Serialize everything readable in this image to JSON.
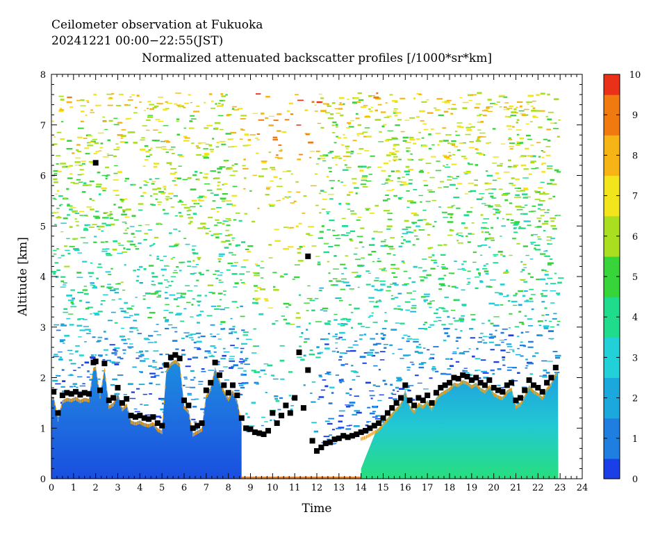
{
  "header": {
    "line1": "Ceilometer observation at Fukuoka",
    "line2": "20241221  00:00−22:55(JST)",
    "line3": "Normalized attenuated backscatter profiles [/1000*sr*km]"
  },
  "chart_data": {
    "type": "heatmap",
    "xlabel": "Time",
    "ylabel": "Altitude [km]",
    "xlim": [
      0,
      24
    ],
    "ylim": [
      0,
      8
    ],
    "x_ticks": [
      "0",
      "1",
      "2",
      "3",
      "4",
      "5",
      "6",
      "7",
      "8",
      "9",
      "10",
      "11",
      "12",
      "13",
      "14",
      "15",
      "16",
      "17",
      "18",
      "19",
      "20",
      "21",
      "22",
      "23",
      "24"
    ],
    "y_ticks": [
      "0",
      "1",
      "2",
      "3",
      "4",
      "5",
      "6",
      "7",
      "8"
    ],
    "data_top_km": 7.65,
    "data_end_hour": 22.92,
    "colorbar": {
      "range": [
        0,
        10
      ],
      "ticks": [
        "0",
        "1",
        "2",
        "3",
        "4",
        "5",
        "6",
        "7",
        "8",
        "9",
        "10"
      ],
      "colors": [
        "#1a3fe8",
        "#1e7fe0",
        "#1aa8dd",
        "#22d0d8",
        "#1fdc8c",
        "#37d43a",
        "#a9df1f",
        "#f2e51b",
        "#f6b514",
        "#f07a10",
        "#e9311a"
      ]
    },
    "cloud_base_hours": [
      0.1,
      0.3,
      0.5,
      0.7,
      0.9,
      1.1,
      1.3,
      1.5,
      1.7,
      1.9,
      2.0,
      2.2,
      2.4,
      2.6,
      2.8,
      3.0,
      3.2,
      3.4,
      3.6,
      3.8,
      4.0,
      4.2,
      4.4,
      4.6,
      4.8,
      5.0,
      5.2,
      5.4,
      5.6,
      5.8,
      6.0,
      6.2,
      6.4,
      6.6,
      6.8,
      7.0,
      7.2,
      7.4,
      7.6,
      7.8,
      8.0,
      8.2,
      8.4,
      8.6,
      8.8,
      9.0,
      9.2,
      9.4,
      9.6,
      9.8,
      10.0,
      10.2,
      10.4,
      10.6,
      10.8,
      11.0,
      11.2,
      11.4,
      11.6,
      11.8,
      12.0,
      12.2,
      12.4,
      12.6,
      12.8,
      13.0,
      13.2,
      13.4,
      13.6,
      13.8,
      14.0,
      14.2,
      14.4,
      14.6,
      14.8,
      15.0,
      15.2,
      15.4,
      15.6,
      15.8,
      16.0,
      16.2,
      16.4,
      16.6,
      16.8,
      17.0,
      17.2,
      17.4,
      17.6,
      17.8,
      18.0,
      18.2,
      18.4,
      18.6,
      18.8,
      19.0,
      19.2,
      19.4,
      19.6,
      19.8,
      20.0,
      20.2,
      20.4,
      20.6,
      20.8,
      21.0,
      21.2,
      21.4,
      21.6,
      21.8,
      22.0,
      22.2,
      22.4,
      22.6,
      22.8
    ],
    "cloud_base_km": [
      1.72,
      1.3,
      1.65,
      1.7,
      1.68,
      1.72,
      1.66,
      1.7,
      1.68,
      2.3,
      2.32,
      1.75,
      2.28,
      1.55,
      1.6,
      1.8,
      1.5,
      1.58,
      1.25,
      1.22,
      1.25,
      1.2,
      1.18,
      1.22,
      1.1,
      1.05,
      2.25,
      2.4,
      2.45,
      2.38,
      1.55,
      1.45,
      1.0,
      1.05,
      1.1,
      1.75,
      1.9,
      2.3,
      2.05,
      1.85,
      1.7,
      1.85,
      1.65,
      1.2,
      1.0,
      0.98,
      0.92,
      0.9,
      0.88,
      0.95,
      1.3,
      1.1,
      1.25,
      1.45,
      1.3,
      1.6,
      2.5,
      1.4,
      2.15,
      0.75,
      0.55,
      0.62,
      0.7,
      0.72,
      0.78,
      0.8,
      0.85,
      0.82,
      0.85,
      0.88,
      0.92,
      0.95,
      1.0,
      1.05,
      1.1,
      1.2,
      1.3,
      1.4,
      1.5,
      1.6,
      1.85,
      1.55,
      1.45,
      1.6,
      1.55,
      1.65,
      1.5,
      1.7,
      1.8,
      1.85,
      1.9,
      2.0,
      1.98,
      2.05,
      2.02,
      1.95,
      2.0,
      1.9,
      1.85,
      1.95,
      1.8,
      1.75,
      1.72,
      1.85,
      1.9,
      1.55,
      1.6,
      1.75,
      1.95,
      1.85,
      1.8,
      1.72,
      1.9,
      2.0,
      2.2
    ],
    "isolated_points": [
      {
        "x": 2.0,
        "y": 6.25
      },
      {
        "x": 11.6,
        "y": 4.4
      }
    ]
  }
}
